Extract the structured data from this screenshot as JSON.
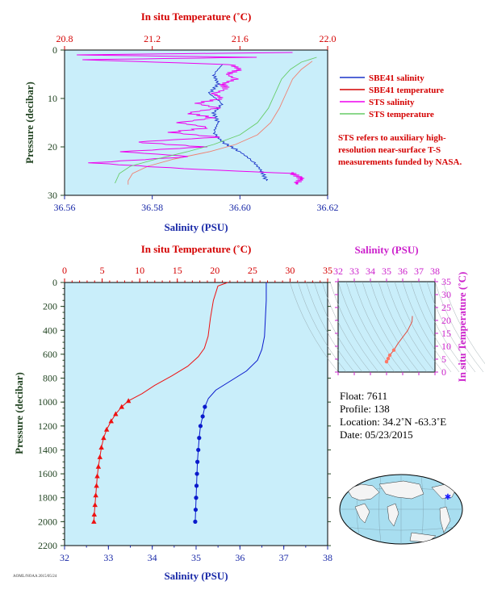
{
  "colors": {
    "plot_bg": "#c9eefa",
    "sbe_sal": "#1a33c8",
    "sbe_temp": "#f08070",
    "sts_sal": "#ee00ee",
    "sts_temp": "#66cc66",
    "axis_red": "#d40000",
    "axis_blue": "#1a2aa8",
    "axis_green": "#224422",
    "axis_magenta": "#cc22cc",
    "deep_temp": "#ee1111",
    "deep_sal": "#0a1acc"
  },
  "float_info": {
    "float": "Float: 7611",
    "profile": "Profile: 138",
    "location": "Location: 34.2˚N -63.3˚E",
    "date": "Date: 05/23/2015"
  },
  "footer_id": "AOML/NOAA 2015/05/24",
  "chart_data": [
    {
      "type": "line",
      "panel": "near-surface",
      "top_axis_label": "In situ Temperature (˚C)",
      "top_ticks": [
        "20.8",
        "21.2",
        "21.6",
        "22.0"
      ],
      "top_range": [
        20.8,
        22.0
      ],
      "bottom_axis_label": "Salinity (PSU)",
      "bottom_ticks": [
        "36.56",
        "36.58",
        "36.60",
        "36.62"
      ],
      "bottom_range": [
        36.56,
        36.62
      ],
      "ylabel": "Pressure (decibar)",
      "y_ticks": [
        "0",
        "10",
        "20",
        "30"
      ],
      "y_range": [
        0,
        30
      ],
      "legend_position": "right",
      "series": [
        {
          "name": "SBE41 salinity",
          "color": "#1a33c8",
          "axis": "salinity",
          "points": [
            [
              36.596,
              3
            ],
            [
              36.594,
              5
            ],
            [
              36.595,
              7
            ],
            [
              36.593,
              9
            ],
            [
              36.596,
              11
            ],
            [
              36.594,
              13
            ],
            [
              36.595,
              15
            ],
            [
              36.594,
              17
            ],
            [
              36.596,
              19
            ],
            [
              36.6,
              21
            ],
            [
              36.603,
              23
            ],
            [
              36.605,
              25
            ],
            [
              36.606,
              27
            ]
          ]
        },
        {
          "name": "SBE41 temperature",
          "color": "#f08070",
          "axis": "temperature",
          "points": [
            [
              21.93,
              2.3
            ],
            [
              21.88,
              4
            ],
            [
              21.84,
              6
            ],
            [
              21.81,
              9
            ],
            [
              21.78,
              12
            ],
            [
              21.74,
              15
            ],
            [
              21.68,
              17.5
            ],
            [
              21.58,
              19.5
            ],
            [
              21.46,
              21
            ],
            [
              21.3,
              22.5
            ],
            [
              21.18,
              24
            ],
            [
              21.11,
              25.5
            ],
            [
              21.09,
              27
            ],
            [
              21.09,
              27.8
            ]
          ]
        },
        {
          "name": "STS salinity",
          "color": "#ee00ee",
          "axis": "salinity",
          "points": [
            [
              36.612,
              0.5
            ],
            [
              36.562,
              1
            ],
            [
              36.603,
              1.5
            ],
            [
              36.564,
              2
            ],
            [
              36.598,
              3
            ],
            [
              36.6,
              4
            ],
            [
              36.597,
              5
            ],
            [
              36.599,
              6
            ],
            [
              36.596,
              7
            ],
            [
              36.597,
              8
            ],
            [
              36.594,
              9
            ],
            [
              36.596,
              10
            ],
            [
              36.59,
              11
            ],
            [
              36.595,
              12
            ],
            [
              36.588,
              13
            ],
            [
              36.594,
              14
            ],
            [
              36.586,
              15
            ],
            [
              36.593,
              16
            ],
            [
              36.584,
              17
            ],
            [
              36.595,
              18
            ],
            [
              36.576,
              19
            ],
            [
              36.592,
              20
            ],
            [
              36.573,
              21
            ],
            [
              36.589,
              22
            ],
            [
              36.566,
              23.3
            ],
            [
              36.587,
              24.5
            ],
            [
              36.612,
              25.5
            ],
            [
              36.614,
              26.5
            ],
            [
              36.613,
              27.5
            ]
          ]
        },
        {
          "name": "STS temperature",
          "color": "#66cc66",
          "axis": "temperature",
          "points": [
            [
              21.95,
              1.5
            ],
            [
              21.88,
              2.5
            ],
            [
              21.83,
              4
            ],
            [
              21.79,
              6
            ],
            [
              21.76,
              9
            ],
            [
              21.73,
              12
            ],
            [
              21.68,
              15
            ],
            [
              21.6,
              17.5
            ],
            [
              21.48,
              19.5
            ],
            [
              21.36,
              21
            ],
            [
              21.22,
              22.5
            ],
            [
              21.1,
              24
            ],
            [
              21.05,
              25.5
            ],
            [
              21.03,
              27.5
            ]
          ]
        }
      ]
    },
    {
      "type": "line",
      "panel": "full-profile",
      "top_axis_label": "In situ Temperature (˚C)",
      "top_ticks": [
        "0",
        "5",
        "10",
        "15",
        "20",
        "25",
        "30",
        "35"
      ],
      "top_range": [
        0,
        35
      ],
      "bottom_axis_label": "Salinity (PSU)",
      "bottom_ticks": [
        "32",
        "33",
        "34",
        "35",
        "36",
        "37",
        "38"
      ],
      "bottom_range": [
        32,
        38
      ],
      "ylabel": "Pressure (decibar)",
      "y_ticks": [
        "0",
        "200",
        "400",
        "600",
        "800",
        "1000",
        "1200",
        "1400",
        "1600",
        "1800",
        "2000",
        "2200"
      ],
      "y_range": [
        0,
        2200
      ],
      "series": [
        {
          "name": "temperature",
          "color": "#ee1111",
          "axis": "temperature",
          "points": [
            [
              21.7,
              0
            ],
            [
              20.4,
              30
            ],
            [
              19.8,
              150
            ],
            [
              19.4,
              300
            ],
            [
              19.1,
              450
            ],
            [
              18.6,
              550
            ],
            [
              17.8,
              620
            ],
            [
              16.4,
              700
            ],
            [
              14.3,
              780
            ],
            [
              12,
              860
            ],
            [
              10.3,
              930
            ],
            [
              8.5,
              990
            ],
            [
              7.6,
              1040
            ],
            [
              6.8,
              1100
            ],
            [
              6.2,
              1160
            ],
            [
              5.6,
              1230
            ],
            [
              5.2,
              1300
            ],
            [
              4.9,
              1380
            ],
            [
              4.7,
              1460
            ],
            [
              4.5,
              1540
            ],
            [
              4.35,
              1620
            ],
            [
              4.25,
              1700
            ],
            [
              4.15,
              1780
            ],
            [
              4.05,
              1860
            ],
            [
              3.95,
              1940
            ],
            [
              3.9,
              2000
            ]
          ]
        },
        {
          "name": "salinity",
          "color": "#0a1acc",
          "axis": "salinity",
          "points": [
            [
              36.6,
              0
            ],
            [
              36.6,
              150
            ],
            [
              36.58,
              300
            ],
            [
              36.56,
              450
            ],
            [
              36.5,
              560
            ],
            [
              36.4,
              650
            ],
            [
              36.15,
              740
            ],
            [
              35.8,
              820
            ],
            [
              35.45,
              900
            ],
            [
              35.28,
              970
            ],
            [
              35.2,
              1040
            ],
            [
              35.15,
              1120
            ],
            [
              35.1,
              1200
            ],
            [
              35.07,
              1300
            ],
            [
              35.05,
              1400
            ],
            [
              35.03,
              1500
            ],
            [
              35.02,
              1600
            ],
            [
              35.01,
              1700
            ],
            [
              35.0,
              1800
            ],
            [
              34.99,
              1900
            ],
            [
              34.98,
              2000
            ]
          ]
        }
      ],
      "temp_markers": [
        [
          8.5,
          990
        ],
        [
          7.6,
          1040
        ],
        [
          6.8,
          1100
        ],
        [
          6.2,
          1160
        ],
        [
          5.6,
          1230
        ],
        [
          5.2,
          1300
        ],
        [
          4.9,
          1380
        ],
        [
          4.7,
          1460
        ],
        [
          4.5,
          1540
        ],
        [
          4.35,
          1620
        ],
        [
          4.25,
          1700
        ],
        [
          4.15,
          1780
        ],
        [
          4.05,
          1860
        ],
        [
          3.95,
          1940
        ],
        [
          3.9,
          2000
        ]
      ],
      "sal_markers": [
        [
          35.2,
          1040
        ],
        [
          35.15,
          1120
        ],
        [
          35.1,
          1200
        ],
        [
          35.07,
          1300
        ],
        [
          35.05,
          1400
        ],
        [
          35.03,
          1500
        ],
        [
          35.02,
          1600
        ],
        [
          35.01,
          1700
        ],
        [
          35.0,
          1800
        ],
        [
          34.99,
          1900
        ],
        [
          34.98,
          2000
        ]
      ]
    },
    {
      "type": "scatter",
      "panel": "T-S diagram",
      "top_axis_label": "Salinity (PSU)",
      "top_ticks": [
        "32",
        "33",
        "34",
        "35",
        "36",
        "37",
        "38"
      ],
      "x_range": [
        32,
        38
      ],
      "right_axis_label": "In situ Temperature (˚C)",
      "right_ticks": [
        "0",
        "5",
        "10",
        "15",
        "20",
        "25",
        "30",
        "35"
      ],
      "y_range": [
        0,
        35
      ],
      "points": [
        [
          36.6,
          21.7
        ],
        [
          36.58,
          19.5
        ],
        [
          36.5,
          18.5
        ],
        [
          36.3,
          16
        ],
        [
          36.0,
          13.5
        ],
        [
          35.7,
          11
        ],
        [
          35.45,
          8.5
        ],
        [
          35.2,
          6.5
        ],
        [
          35.1,
          5.2
        ],
        [
          35.0,
          4
        ]
      ]
    }
  ],
  "sts_note": "STS refers to auxiliary high-resolution near-surface T-S measurements funded by NASA."
}
